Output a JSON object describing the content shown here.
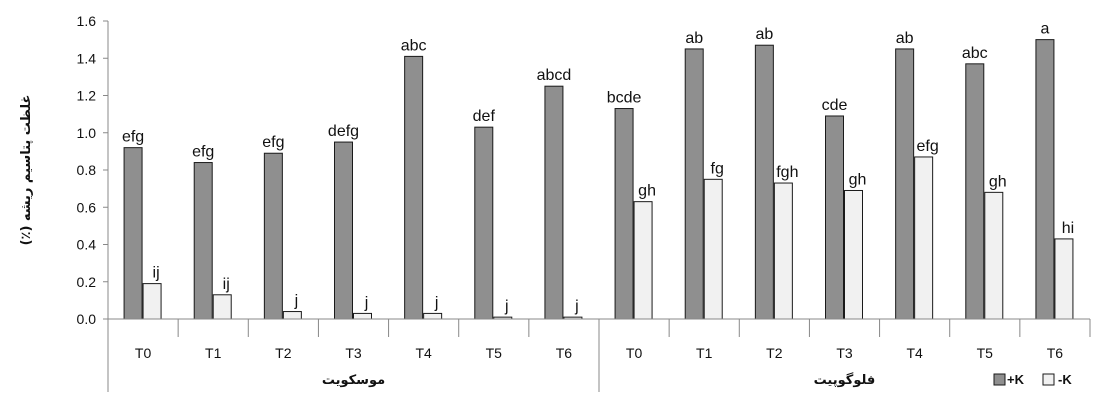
{
  "chart_data": {
    "type": "bar",
    "ylabel": "غلظت پتاسیم ریشه (٪)",
    "ylim": [
      0,
      1.6
    ],
    "yticks": [
      "0.0",
      "0.2",
      "0.4",
      "0.6",
      "0.8",
      "1.0",
      "1.2",
      "1.4",
      "1.6"
    ],
    "grid": false,
    "legend_position": "bottom-right",
    "groups": [
      {
        "name": "موسکویت",
        "categories": [
          "T0",
          "T1",
          "T2",
          "T3",
          "T4",
          "T5",
          "T6"
        ],
        "plus_k": {
          "values": [
            0.92,
            0.84,
            0.89,
            0.95,
            1.41,
            1.03,
            1.25
          ],
          "letters": [
            "efg",
            "efg",
            "efg",
            "defg",
            "abc",
            "def",
            "abcd"
          ]
        },
        "minus_k": {
          "values": [
            0.19,
            0.13,
            0.04,
            0.03,
            0.03,
            0.01,
            0.01
          ],
          "letters": [
            "ij",
            "ij",
            "j",
            "j",
            "j",
            "j",
            "j"
          ]
        }
      },
      {
        "name": "فلوگوپیت",
        "categories": [
          "T0",
          "T1",
          "T2",
          "T3",
          "T4",
          "T5",
          "T6"
        ],
        "plus_k": {
          "values": [
            1.13,
            1.45,
            1.47,
            1.09,
            1.45,
            1.37,
            1.5
          ],
          "letters": [
            "bcde",
            "ab",
            "ab",
            "cde",
            "ab",
            "abc",
            "a"
          ]
        },
        "minus_k": {
          "values": [
            0.63,
            0.75,
            0.73,
            0.69,
            0.87,
            0.68,
            0.43
          ],
          "letters": [
            "gh",
            "fg",
            "fgh",
            "gh",
            "efg",
            "gh",
            "hi"
          ]
        }
      }
    ],
    "series": [
      {
        "name": "+K",
        "color": "#8f8f8f"
      },
      {
        "name": "-K",
        "color": "#f1f1f1"
      }
    ]
  }
}
